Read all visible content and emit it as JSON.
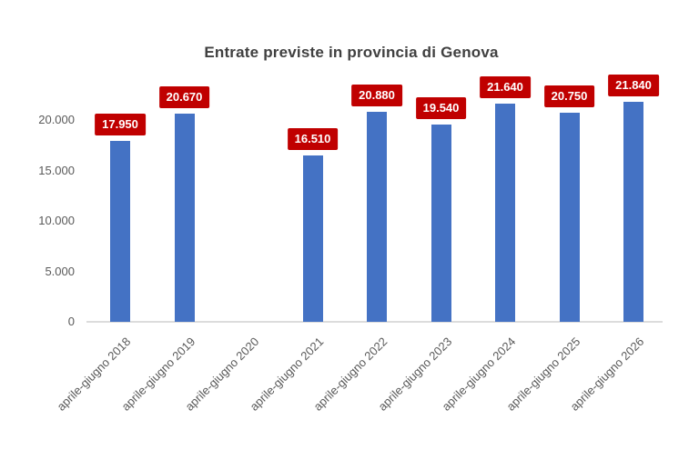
{
  "chart_data": {
    "type": "bar",
    "title": "Entrate previste in provincia di Genova",
    "xlabel": "",
    "ylabel": "",
    "categories": [
      "aprile-giugno 2018",
      "aprile-giugno 2019",
      "aprile-giugno 2020",
      "aprile-giugno 2021",
      "aprile-giugno 2022",
      "aprile-giugno 2023",
      "aprile-giugno 2024",
      "aprile-giugno 2025",
      "aprile-giugno 2026"
    ],
    "values": [
      17950,
      20670,
      null,
      16510,
      20880,
      19540,
      21640,
      20750,
      21840
    ],
    "data_labels": [
      "17.950",
      "20.670",
      null,
      "16.510",
      "20.880",
      "19.540",
      "21.640",
      "20.750",
      "21.840"
    ],
    "y_axis": {
      "tick_labels": [
        "0",
        "5.000",
        "10.000",
        "15.000",
        "20.000"
      ],
      "tick_values": [
        0,
        5000,
        10000,
        15000,
        20000
      ]
    },
    "ylim": [
      0,
      22500
    ],
    "grid": false,
    "legend": false,
    "colors": {
      "bar": "#4472C4",
      "data_label_bg": "#C00000",
      "data_label_text": "#FFFFFF",
      "title_text": "#404040",
      "axis_text": "#595959",
      "axis_line": "#DCDCDC"
    }
  }
}
